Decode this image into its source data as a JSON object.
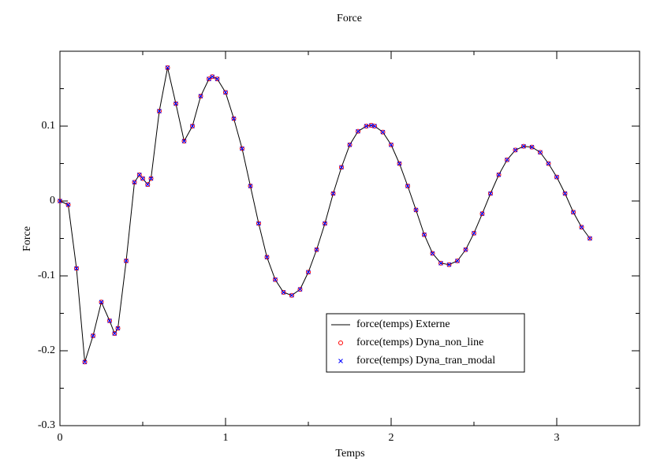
{
  "chart_data": {
    "type": "line",
    "title": "Force",
    "x_label": "Temps",
    "y_label": "Force",
    "x": [
      0,
      0.05,
      0.1,
      0.15,
      0.2,
      0.25,
      0.3,
      0.33,
      0.35,
      0.4,
      0.45,
      0.48,
      0.5,
      0.53,
      0.55,
      0.6,
      0.65,
      0.7,
      0.75,
      0.8,
      0.85,
      0.9,
      0.92,
      0.95,
      1.0,
      1.05,
      1.1,
      1.15,
      1.2,
      1.25,
      1.3,
      1.35,
      1.4,
      1.45,
      1.5,
      1.55,
      1.6,
      1.65,
      1.7,
      1.75,
      1.8,
      1.85,
      1.88,
      1.9,
      1.95,
      2.0,
      2.05,
      2.1,
      2.15,
      2.2,
      2.25,
      2.3,
      2.35,
      2.4,
      2.45,
      2.5,
      2.55,
      2.6,
      2.65,
      2.7,
      2.75,
      2.8,
      2.85,
      2.9,
      2.95,
      3.0,
      3.05,
      3.1,
      3.15,
      3.2
    ],
    "series": [
      {
        "name": "force(temps) Externe",
        "color": "#000000",
        "style": "line",
        "values": [
          0,
          -0.005,
          -0.09,
          -0.215,
          -0.18,
          -0.135,
          -0.16,
          -0.177,
          -0.17,
          -0.08,
          0.025,
          0.035,
          0.03,
          0.022,
          0.03,
          0.12,
          0.178,
          0.13,
          0.08,
          0.1,
          0.14,
          0.163,
          0.166,
          0.163,
          0.145,
          0.11,
          0.07,
          0.02,
          -0.03,
          -0.075,
          -0.105,
          -0.122,
          -0.126,
          -0.118,
          -0.095,
          -0.065,
          -0.03,
          0.01,
          0.045,
          0.075,
          0.093,
          0.1,
          0.101,
          0.1,
          0.092,
          0.075,
          0.05,
          0.02,
          -0.012,
          -0.045,
          -0.07,
          -0.083,
          -0.085,
          -0.08,
          -0.065,
          -0.043,
          -0.017,
          0.01,
          0.035,
          0.055,
          0.068,
          0.073,
          0.072,
          0.065,
          0.05,
          0.032,
          0.01,
          -0.015,
          -0.035,
          -0.05
        ]
      },
      {
        "name": "force(temps) Dyna_non_line",
        "color": "#ff0000",
        "style": "circle",
        "values": [
          0,
          -0.005,
          -0.09,
          -0.215,
          -0.18,
          -0.135,
          -0.16,
          -0.177,
          -0.17,
          -0.08,
          0.025,
          0.035,
          0.03,
          0.022,
          0.03,
          0.12,
          0.178,
          0.13,
          0.08,
          0.1,
          0.14,
          0.163,
          0.166,
          0.163,
          0.145,
          0.11,
          0.07,
          0.02,
          -0.03,
          -0.075,
          -0.105,
          -0.122,
          -0.126,
          -0.118,
          -0.095,
          -0.065,
          -0.03,
          0.01,
          0.045,
          0.075,
          0.093,
          0.1,
          0.101,
          0.1,
          0.092,
          0.075,
          0.05,
          0.02,
          -0.012,
          -0.045,
          -0.07,
          -0.083,
          -0.085,
          -0.08,
          -0.065,
          -0.043,
          -0.017,
          0.01,
          0.035,
          0.055,
          0.068,
          0.073,
          0.072,
          0.065,
          0.05,
          0.032,
          0.01,
          -0.015,
          -0.035,
          -0.05
        ]
      },
      {
        "name": "force(temps) Dyna_tran_modal",
        "color": "#0000ff",
        "style": "cross",
        "values": [
          0,
          -0.005,
          -0.09,
          -0.215,
          -0.18,
          -0.135,
          -0.16,
          -0.177,
          -0.17,
          -0.08,
          0.025,
          0.035,
          0.03,
          0.022,
          0.03,
          0.12,
          0.178,
          0.13,
          0.08,
          0.1,
          0.14,
          0.163,
          0.166,
          0.163,
          0.145,
          0.11,
          0.07,
          0.02,
          -0.03,
          -0.075,
          -0.105,
          -0.122,
          -0.126,
          -0.118,
          -0.095,
          -0.065,
          -0.03,
          0.01,
          0.045,
          0.075,
          0.093,
          0.1,
          0.101,
          0.1,
          0.092,
          0.075,
          0.05,
          0.02,
          -0.012,
          -0.045,
          -0.07,
          -0.083,
          -0.085,
          -0.08,
          -0.065,
          -0.043,
          -0.017,
          0.01,
          0.035,
          0.055,
          0.068,
          0.073,
          0.072,
          0.065,
          0.05,
          0.032,
          0.01,
          -0.015,
          -0.035,
          -0.05
        ]
      }
    ],
    "xlim": [
      0,
      3.5
    ],
    "xticks": [
      0,
      1,
      2,
      3
    ],
    "xminor": [
      0.5,
      1.5,
      2.5,
      3.5
    ],
    "ylim": [
      -0.3,
      0.2
    ],
    "yticks": [
      -0.3,
      -0.2,
      -0.1,
      0,
      0.1
    ],
    "yminor": [
      -0.25,
      -0.15,
      -0.05,
      0.05,
      0.15
    ],
    "grid": false,
    "legend": "lower center"
  }
}
